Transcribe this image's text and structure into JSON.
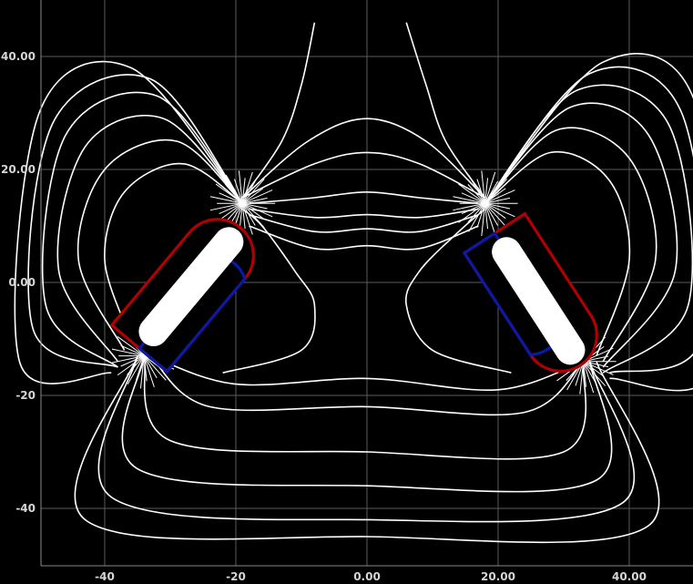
{
  "chart_data": {
    "type": "line",
    "title": "",
    "xlabel": "",
    "ylabel": "",
    "xlim": [
      -50,
      50
    ],
    "ylim": [
      -50,
      50
    ],
    "grid": true,
    "x_tick_labels": [
      "-40",
      "-20",
      "0.00",
      "20.00",
      "40.00"
    ],
    "x_ticks": [
      -40,
      -20,
      0,
      20,
      40
    ],
    "y_tick_labels": [
      "40.00",
      "20.00",
      "0.00",
      "-20",
      "-40"
    ],
    "y_ticks": [
      40,
      20,
      0,
      -20,
      -40
    ],
    "magnets": [
      {
        "name": "left",
        "center": [
          -27,
          -1
        ],
        "angle_deg": 50,
        "length": 24,
        "outer_width": 11,
        "inner_width": 4.5,
        "north_color": "#b00000",
        "south_color": "#0b1aa6"
      },
      {
        "name": "right",
        "center": [
          26,
          -3
        ],
        "angle_deg": -57,
        "length": 24,
        "outer_width": 11,
        "inner_width": 4.5,
        "north_color": "#b00000",
        "south_color": "#0b1aa6"
      }
    ],
    "poles": {
      "left_upper": [
        -19,
        14
      ],
      "left_lower": [
        -34,
        -13
      ],
      "right_upper": [
        18,
        14
      ],
      "right_lower": [
        33,
        -14
      ]
    },
    "field_lines": [
      {
        "name": "center-loop-1",
        "points": [
          [
            -18,
            10
          ],
          [
            -8,
            6
          ],
          [
            0,
            6.5
          ],
          [
            8,
            6
          ],
          [
            17,
            10
          ]
        ]
      },
      {
        "name": "center-loop-2",
        "points": [
          [
            -18,
            12
          ],
          [
            -8,
            9
          ],
          [
            0,
            9.5
          ],
          [
            8,
            9
          ],
          [
            17,
            12
          ]
        ]
      },
      {
        "name": "center-loop-3",
        "points": [
          [
            -18,
            13
          ],
          [
            -8,
            11.5
          ],
          [
            0,
            12
          ],
          [
            8,
            11.5
          ],
          [
            17,
            13
          ]
        ]
      },
      {
        "name": "center-loop-4",
        "points": [
          [
            -18,
            14
          ],
          [
            -8,
            15
          ],
          [
            0,
            16
          ],
          [
            8,
            15
          ],
          [
            17,
            14
          ]
        ]
      },
      {
        "name": "center-loop-5",
        "points": [
          [
            -19,
            15
          ],
          [
            -8,
            21
          ],
          [
            0,
            23
          ],
          [
            8,
            21
          ],
          [
            18,
            15
          ]
        ]
      },
      {
        "name": "center-loop-6",
        "points": [
          [
            -19,
            15
          ],
          [
            -9,
            25
          ],
          [
            0,
            29
          ],
          [
            9,
            25
          ],
          [
            18,
            15
          ]
        ]
      },
      {
        "name": "upper-open-left",
        "points": [
          [
            -19,
            15
          ],
          [
            -13,
            25
          ],
          [
            -10,
            35
          ],
          [
            -8,
            46
          ]
        ]
      },
      {
        "name": "upper-open-right",
        "points": [
          [
            18,
            15
          ],
          [
            12,
            25
          ],
          [
            9,
            35
          ],
          [
            6,
            46
          ]
        ]
      },
      {
        "name": "bottom-loop-1",
        "points": [
          [
            -33,
            -13
          ],
          [
            -20,
            -18
          ],
          [
            0,
            -17
          ],
          [
            20,
            -19
          ],
          [
            33,
            -14
          ]
        ]
      },
      {
        "name": "bottom-loop-2",
        "points": [
          [
            -33,
            -13
          ],
          [
            -24,
            -22
          ],
          [
            0,
            -22
          ],
          [
            24,
            -23
          ],
          [
            33,
            -14
          ]
        ]
      },
      {
        "name": "bottom-loop-3",
        "points": [
          [
            -34,
            -13
          ],
          [
            -30,
            -28
          ],
          [
            0,
            -30
          ],
          [
            30,
            -30
          ],
          [
            33,
            -14
          ]
        ]
      },
      {
        "name": "bottom-loop-4",
        "points": [
          [
            -34,
            -13
          ],
          [
            -35,
            -33
          ],
          [
            0,
            -36
          ],
          [
            35,
            -35
          ],
          [
            34,
            -14
          ]
        ]
      },
      {
        "name": "bottom-loop-5",
        "points": [
          [
            -35,
            -13
          ],
          [
            -39,
            -38
          ],
          [
            0,
            -42
          ],
          [
            39,
            -39
          ],
          [
            34,
            -14
          ]
        ]
      },
      {
        "name": "bottom-loop-6",
        "points": [
          [
            -35,
            -13
          ],
          [
            -43,
            -42
          ],
          [
            0,
            -45
          ],
          [
            43,
            -43
          ],
          [
            35,
            -14
          ]
        ]
      },
      {
        "name": "left-outer-1",
        "points": [
          [
            -19,
            14
          ],
          [
            -28,
            21
          ],
          [
            -37,
            16
          ],
          [
            -40,
            4
          ],
          [
            -36,
            -10
          ]
        ]
      },
      {
        "name": "left-outer-2",
        "points": [
          [
            -19,
            14
          ],
          [
            -29,
            25
          ],
          [
            -40,
            20
          ],
          [
            -44,
            4
          ],
          [
            -37,
            -12
          ]
        ]
      },
      {
        "name": "left-outer-3",
        "points": [
          [
            -19,
            14
          ],
          [
            -31,
            29
          ],
          [
            -43,
            24
          ],
          [
            -47,
            2
          ],
          [
            -38,
            -14
          ]
        ]
      },
      {
        "name": "left-outer-4",
        "points": [
          [
            -19,
            14
          ],
          [
            -32,
            33
          ],
          [
            -46,
            26
          ],
          [
            -49,
            -4
          ],
          [
            -38,
            -15
          ]
        ]
      },
      {
        "name": "left-outer-5",
        "points": [
          [
            -19,
            14
          ],
          [
            -33,
            36
          ],
          [
            -48,
            28
          ],
          [
            -51,
            -8
          ],
          [
            -38,
            -15
          ]
        ]
      },
      {
        "name": "left-outer-6",
        "points": [
          [
            -19,
            14
          ],
          [
            -36,
            38
          ],
          [
            -50,
            30
          ],
          [
            -53,
            -14
          ],
          [
            -39,
            -16
          ]
        ]
      },
      {
        "name": "right-outer-1",
        "points": [
          [
            18,
            14
          ],
          [
            28,
            23
          ],
          [
            37,
            18
          ],
          [
            40,
            4
          ],
          [
            35,
            -13
          ]
        ]
      },
      {
        "name": "right-outer-2",
        "points": [
          [
            18,
            14
          ],
          [
            29,
            27
          ],
          [
            40,
            22
          ],
          [
            44,
            4
          ],
          [
            36,
            -14
          ]
        ]
      },
      {
        "name": "right-outer-3",
        "points": [
          [
            18,
            14
          ],
          [
            31,
            31
          ],
          [
            43,
            26
          ],
          [
            47,
            2
          ],
          [
            36,
            -15
          ]
        ]
      },
      {
        "name": "right-outer-4",
        "points": [
          [
            18,
            14
          ],
          [
            32,
            34
          ],
          [
            46,
            28
          ],
          [
            49,
            -4
          ],
          [
            36,
            -16
          ]
        ]
      },
      {
        "name": "right-outer-5",
        "points": [
          [
            18,
            14
          ],
          [
            34,
            37
          ],
          [
            48,
            30
          ],
          [
            51,
            -10
          ],
          [
            37,
            -16
          ]
        ]
      },
      {
        "name": "right-outer-6",
        "points": [
          [
            18,
            14
          ],
          [
            36,
            39
          ],
          [
            50,
            32
          ],
          [
            53,
            -15
          ],
          [
            37,
            -17
          ]
        ]
      },
      {
        "name": "left-inner-side-1",
        "points": [
          [
            -19,
            13
          ],
          [
            -16,
            10
          ],
          [
            -11,
            2
          ],
          [
            -8,
            -4
          ],
          [
            -10,
            -12
          ],
          [
            -22,
            -16
          ]
        ]
      },
      {
        "name": "right-inner-side-1",
        "points": [
          [
            18,
            13
          ],
          [
            14,
            9
          ],
          [
            8,
            2
          ],
          [
            6,
            -4
          ],
          [
            10,
            -12
          ],
          [
            22,
            -16
          ]
        ]
      }
    ]
  }
}
